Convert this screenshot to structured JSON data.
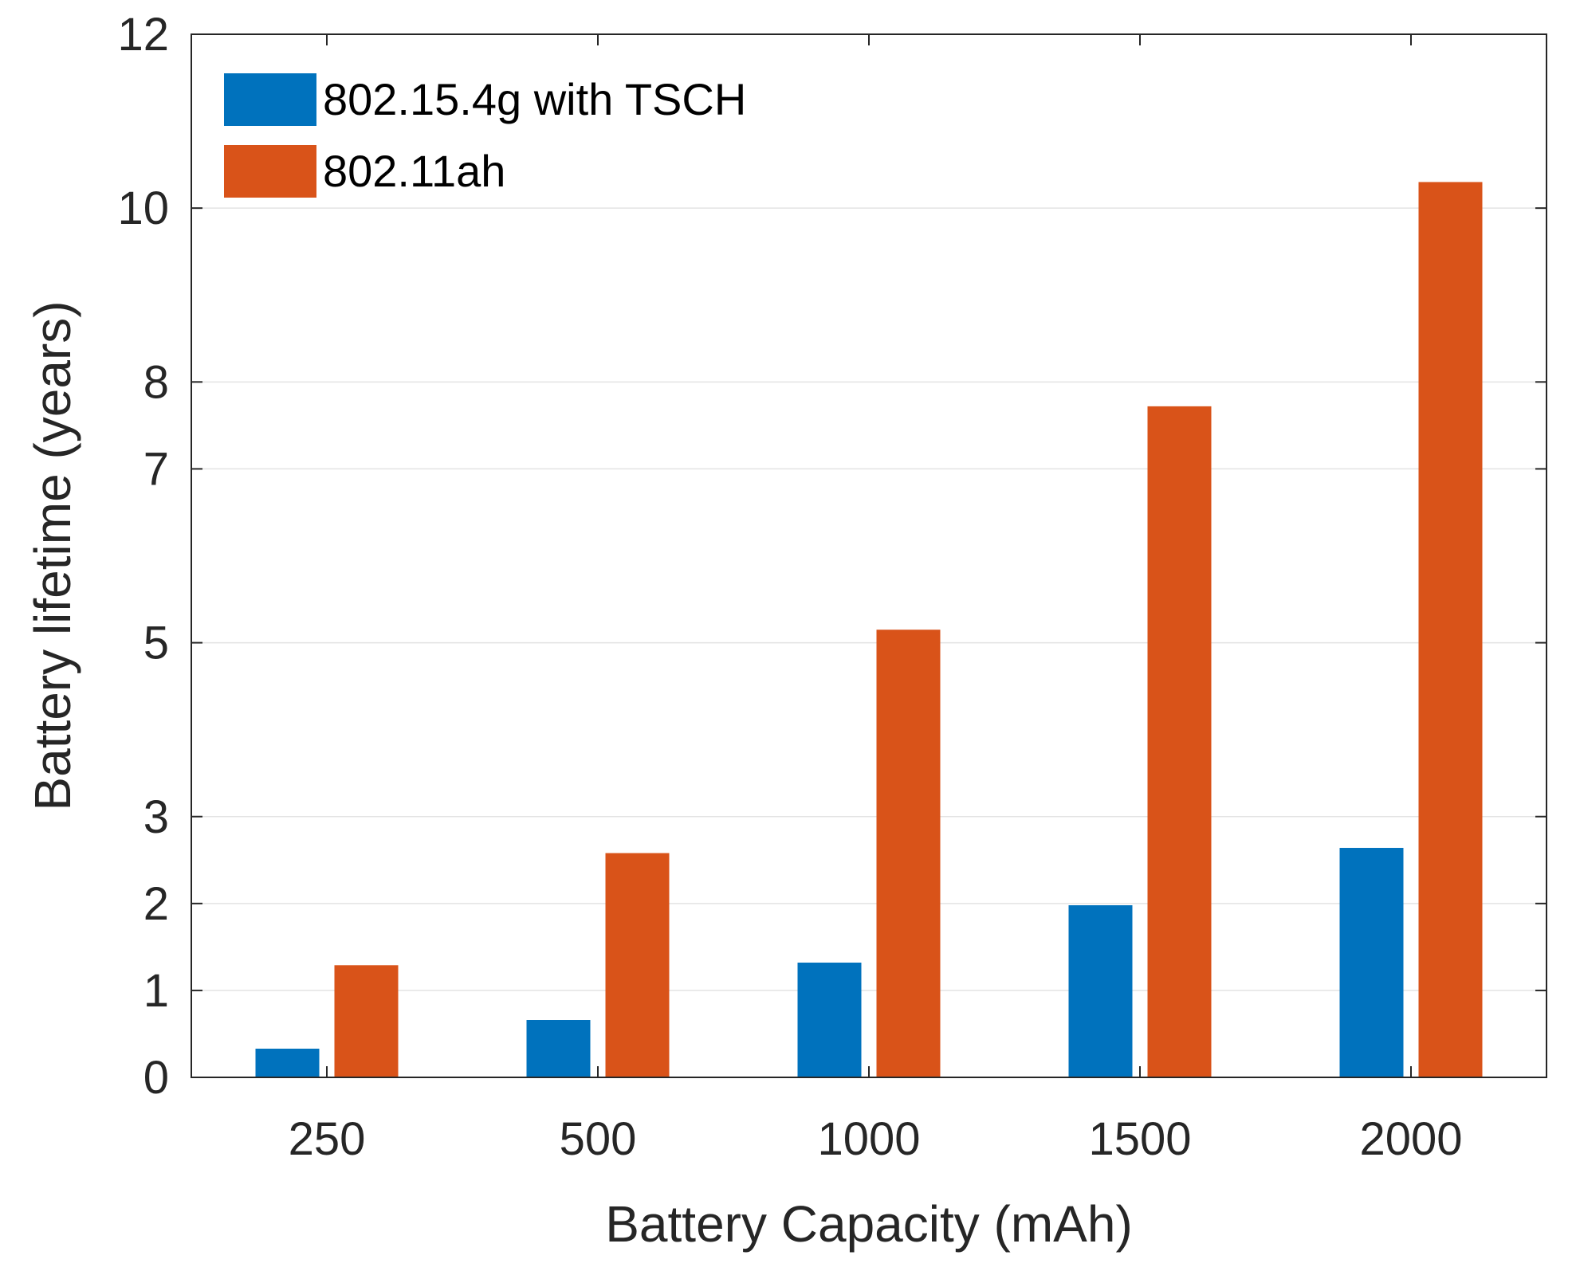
{
  "chart_data": {
    "type": "bar",
    "title": "",
    "xlabel": "Battery Capacity (mAh)",
    "ylabel": "Battery lifetime (years)",
    "categories": [
      "250",
      "500",
      "1000",
      "1500",
      "2000"
    ],
    "yticks": [
      0,
      1,
      2,
      3,
      5,
      7,
      8,
      10,
      12
    ],
    "ylim": [
      0,
      12
    ],
    "grid": true,
    "legend_position": "top-left",
    "series": [
      {
        "name": "802.15.4g with TSCH",
        "color": "#0072BD",
        "values": [
          0.33,
          0.66,
          1.32,
          1.98,
          2.64
        ]
      },
      {
        "name": "802.11ah",
        "color": "#D95319",
        "values": [
          1.29,
          2.58,
          5.15,
          7.72,
          10.3
        ]
      }
    ]
  }
}
